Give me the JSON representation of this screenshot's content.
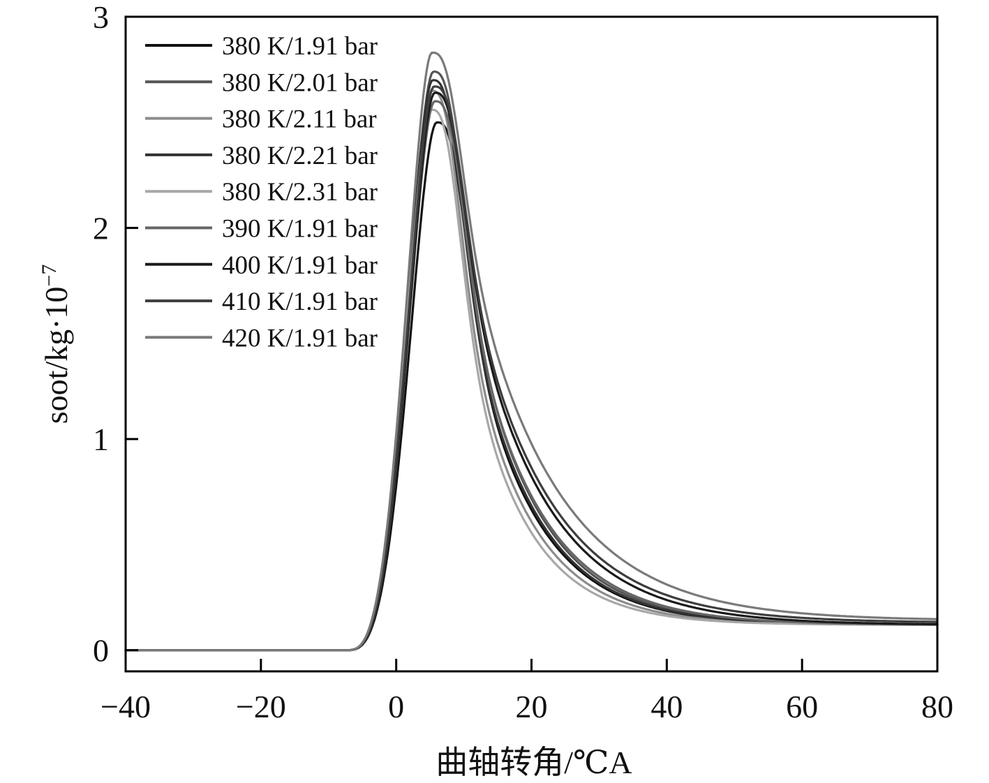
{
  "chart_data": {
    "type": "line",
    "title": "",
    "xlabel": "曲轴转角/℃A",
    "ylabel_base": "soot/kg·10",
    "ylabel_exponent": "−7",
    "xlim": [
      -40,
      80
    ],
    "ylim": [
      -0.1,
      3
    ],
    "xticks": [
      -40,
      -20,
      0,
      20,
      40,
      60,
      80
    ],
    "xtick_labels": [
      "−40",
      "−20",
      "0",
      "20",
      "40",
      "60",
      "80"
    ],
    "yticks": [
      0,
      1,
      2,
      3
    ],
    "ytick_labels": [
      "0",
      "1",
      "2",
      "3"
    ],
    "grid": false,
    "legend_position": "top-left",
    "series": [
      {
        "name": "380 K/1.91 bar",
        "color": "#111111",
        "onset": -7.6,
        "peak_x": 6.0,
        "peak": 2.5,
        "final": 0.12,
        "decay": 9.5
      },
      {
        "name": "380 K/2.01 bar",
        "color": "#555555",
        "onset": -7.6,
        "peak_x": 5.5,
        "peak": 2.74,
        "final": 0.12,
        "decay": 9.8
      },
      {
        "name": "380 K/2.11 bar",
        "color": "#8c8c8c",
        "onset": -7.6,
        "peak_x": 5.2,
        "peak": 2.65,
        "final": 0.12,
        "decay": 9.0
      },
      {
        "name": "380 K/2.21 bar",
        "color": "#333333",
        "onset": -7.6,
        "peak_x": 5.4,
        "peak": 2.7,
        "final": 0.12,
        "decay": 9.6
      },
      {
        "name": "380 K/2.31 bar",
        "color": "#a8a8a8",
        "onset": -7.6,
        "peak_x": 5.2,
        "peak": 2.56,
        "final": 0.12,
        "decay": 8.6
      },
      {
        "name": "390 K/1.91 bar",
        "color": "#666666",
        "onset": -7.6,
        "peak_x": 5.7,
        "peak": 2.6,
        "final": 0.12,
        "decay": 10.2
      },
      {
        "name": "400 K/1.91 bar",
        "color": "#1a1a1a",
        "onset": -7.6,
        "peak_x": 5.7,
        "peak": 2.64,
        "final": 0.12,
        "decay": 11.2
      },
      {
        "name": "410 K/1.91 bar",
        "color": "#3d3d3d",
        "onset": -7.6,
        "peak_x": 5.6,
        "peak": 2.67,
        "final": 0.13,
        "decay": 11.6
      },
      {
        "name": "420 K/1.91 bar",
        "color": "#7a7a7a",
        "onset": -7.6,
        "peak_x": 5.3,
        "peak": 2.83,
        "final": 0.14,
        "decay": 12.6
      }
    ]
  }
}
